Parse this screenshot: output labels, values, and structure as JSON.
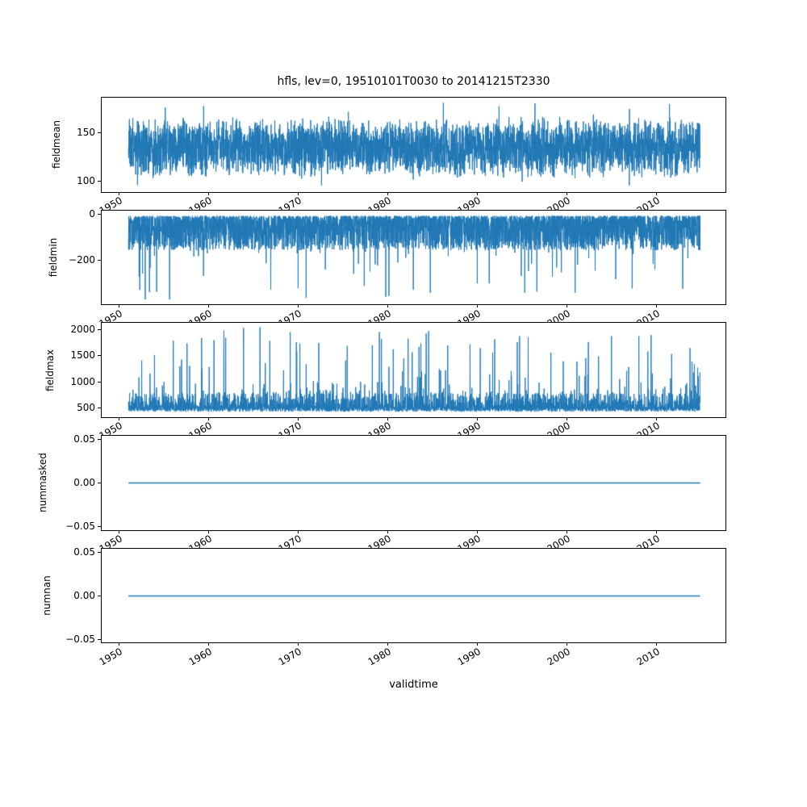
{
  "chart_data": {
    "type": "line",
    "title": "hfls, lev=0, 19510101T0030 to 20141215T2330",
    "xlabel": "validtime",
    "line_color": "#1f77b4",
    "grid": false,
    "legend": "none",
    "xlim": [
      1948.0,
      2017.8
    ],
    "x_data_range": [
      1951.0,
      2014.96
    ],
    "x_ticks": [
      1950,
      1960,
      1970,
      1980,
      1990,
      2000,
      2010
    ],
    "x_tick_labels": [
      "1950",
      "1960",
      "1970",
      "1980",
      "1990",
      "2000",
      "2010"
    ],
    "x_tick_rotation_deg": 30,
    "subplots": [
      {
        "ylabel": "fieldmean",
        "ylim": [
          88,
          186
        ],
        "ytick_values": [
          150,
          100
        ],
        "ytick_labels": [
          "150",
          "100"
        ],
        "series": {
          "kind": "band",
          "center": 134,
          "spread": 33,
          "extra": 22,
          "clamp": [
            95,
            183
          ],
          "approx_min": 95,
          "approx_max": 183
        }
      },
      {
        "ylabel": "fieldmin",
        "ylim": [
          -395,
          18
        ],
        "ytick_values": [
          0,
          -200
        ],
        "ytick_labels": [
          "0",
          "−200"
        ],
        "series": {
          "kind": "spikes-down",
          "top": -5,
          "band": 150,
          "spike_rate": 0.02,
          "spike_base": -150,
          "spike_range": 225,
          "clamp": [
            -375,
            -3
          ],
          "approx_min": -375,
          "approx_max": -3
        }
      },
      {
        "ylabel": "fieldmax",
        "ylim": [
          300,
          2130
        ],
        "ytick_values": [
          2000,
          1500,
          1000,
          500
        ],
        "ytick_labels": [
          "2000",
          "1500",
          "1000",
          "500"
        ],
        "series": {
          "kind": "spikes-up",
          "base": 405,
          "band": 95,
          "tail": 290,
          "spike_rate": 0.07,
          "spike_base": 750,
          "spike_range": 1300,
          "clamp": [
            395,
            2045
          ],
          "approx_min": 395,
          "approx_max": 2045
        }
      },
      {
        "ylabel": "nummasked",
        "ylim": [
          -0.055,
          0.055
        ],
        "ytick_values": [
          0.05,
          0,
          -0.05
        ],
        "ytick_labels": [
          "0.05",
          "0.00",
          "−0.05"
        ],
        "series": {
          "kind": "constant",
          "value": 0
        }
      },
      {
        "ylabel": "numnan",
        "ylim": [
          -0.055,
          0.055
        ],
        "ytick_values": [
          0.05,
          0,
          -0.05
        ],
        "ytick_labels": [
          "0.05",
          "0.00",
          "−0.05"
        ],
        "series": {
          "kind": "constant",
          "value": 0
        }
      }
    ]
  }
}
